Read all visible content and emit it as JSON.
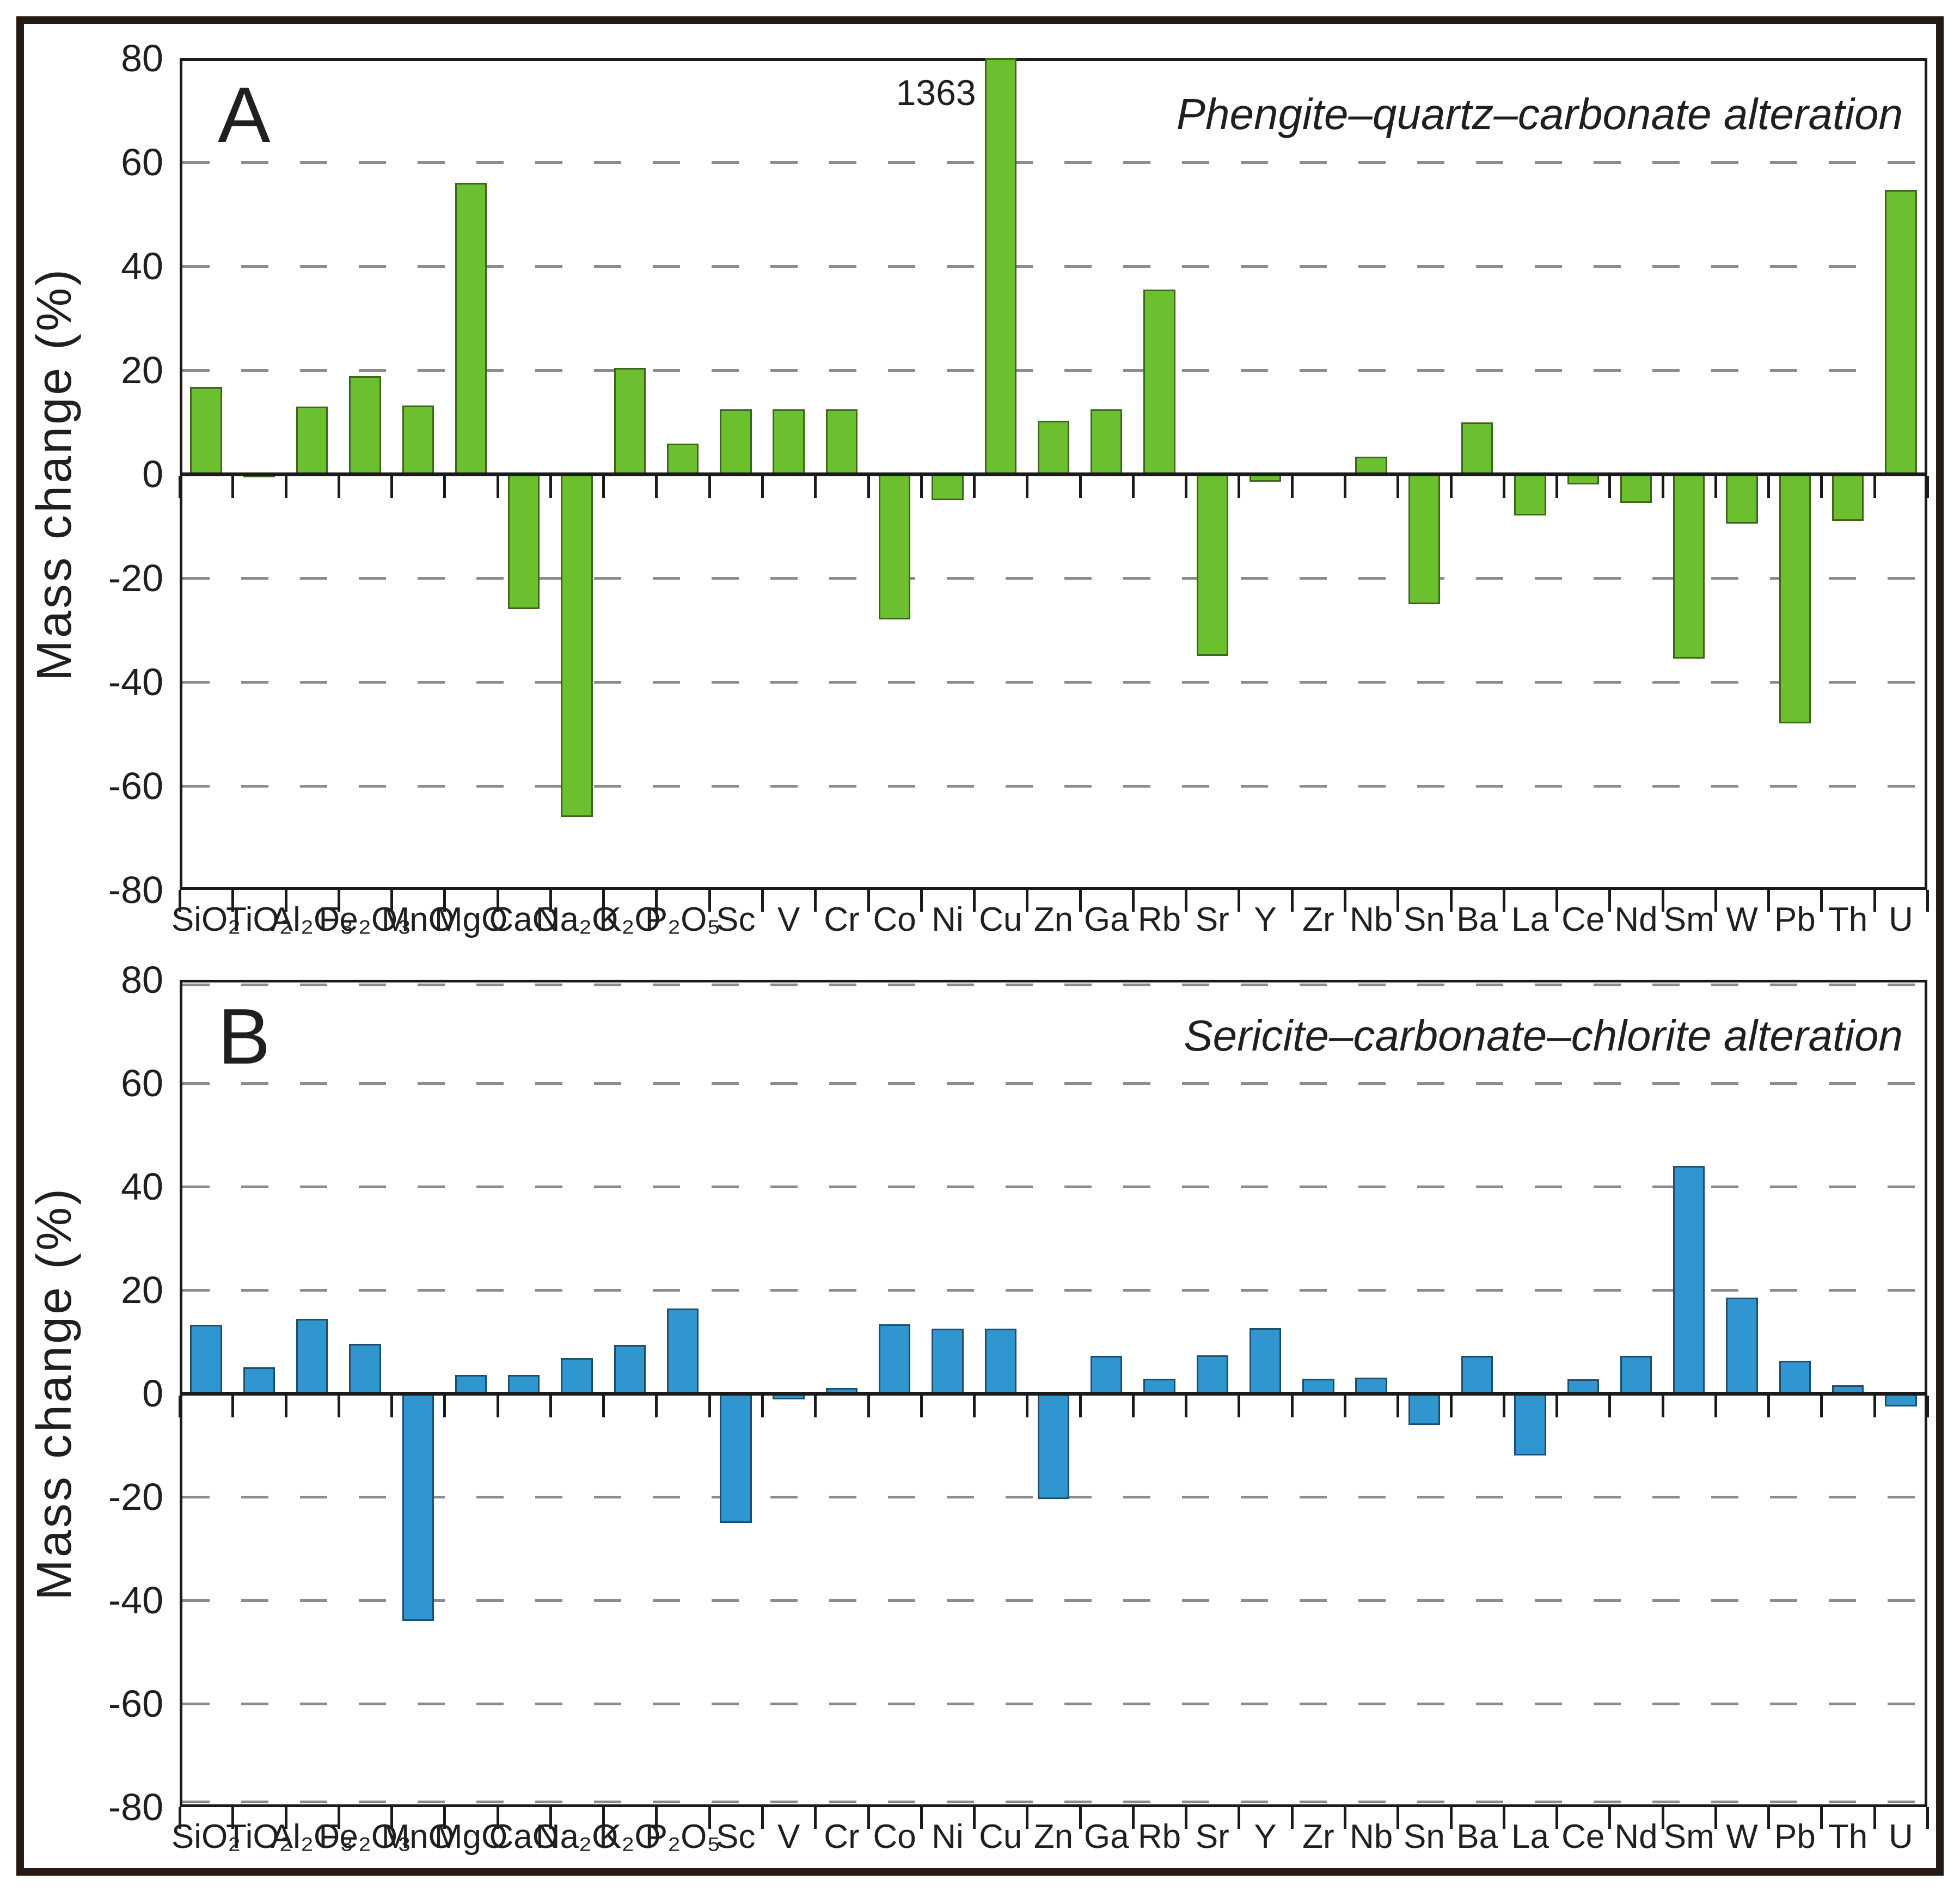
{
  "panels": [
    {
      "panel_label": "A",
      "title": "Phengite–quartz–carbonate alteration",
      "y_axis_label": "Mass change (%)"
    },
    {
      "panel_label": "B",
      "title": "Sericite–carbonate–chlorite alteration",
      "y_axis_label": "Mass change (%)"
    }
  ],
  "colors": {
    "panel_a_bar_fill": "#6cc02f",
    "panel_a_bar_border": "#3d661a",
    "panel_b_bar_fill": "#2f96d0",
    "panel_b_bar_border": "#1e4e6d",
    "axis": "#1a1a1a",
    "gridline": "#8c8c8c",
    "outer_frame": "#251a13"
  },
  "chart_data": [
    {
      "type": "bar",
      "panel_label": "A",
      "title": "Phengite–quartz–carbonate alteration",
      "ylabel": "Mass change (%)",
      "ylim": [
        -80,
        80
      ],
      "ytick_step": 20,
      "grid": "dashed-horizontal",
      "legend": "none",
      "categories": [
        "SiO₂",
        "TiO₂",
        "Al₂O₃",
        "Fe₂O₃",
        "MnO",
        "MgO",
        "CaO",
        "Na₂O",
        "K₂O",
        "P₂O₅",
        "Sc",
        "V",
        "Cr",
        "Co",
        "Ni",
        "Cu",
        "Zn",
        "Ga",
        "Rb",
        "Sr",
        "Y",
        "Zr",
        "Nb",
        "Sn",
        "Ba",
        "La",
        "Ce",
        "Nd",
        "Sm",
        "W",
        "Pb",
        "Th",
        "U"
      ],
      "values": [
        16.8,
        -0.5,
        13,
        18.8,
        13.2,
        56,
        -26,
        -66,
        20.4,
        5.9,
        12.5,
        12.5,
        12.5,
        -28,
        -5,
        1363,
        10.3,
        12.5,
        35.5,
        -35,
        -1.5,
        0,
        3.3,
        -25,
        10,
        -8,
        -2,
        -5.5,
        -35.5,
        -9.5,
        -48,
        -9,
        54.7
      ],
      "annotations": [
        {
          "text": "1363",
          "category": "Cu",
          "note": "bar clipped at +80"
        }
      ]
    },
    {
      "type": "bar",
      "panel_label": "B",
      "title": "Sericite–carbonate–chlorite alteration",
      "ylabel": "Mass change (%)",
      "ylim": [
        -80,
        80
      ],
      "ytick_step": 20,
      "grid": "dashed-horizontal",
      "legend": "none",
      "categories": [
        "SiO₂",
        "TiO₂",
        "Al₂O₃",
        "Fe₂O₃",
        "MnO",
        "MgO",
        "CaO",
        "Na₂O",
        "K₂O",
        "P₂O₅",
        "Sc",
        "V",
        "Cr",
        "Co",
        "Ni",
        "Cu",
        "Zn",
        "Ga",
        "Rb",
        "Sr",
        "Y",
        "Zr",
        "Nb",
        "Sn",
        "Ba",
        "La",
        "Ce",
        "Nd",
        "Sm",
        "W",
        "Pb",
        "Th",
        "U"
      ],
      "values": [
        13.3,
        5.1,
        14.4,
        9.6,
        -44,
        3.6,
        3.6,
        6.8,
        9.4,
        16.4,
        -25,
        -1.2,
        1.1,
        13.4,
        12.5,
        12.5,
        -20.4,
        7.3,
        2.8,
        7.4,
        12.6,
        2.8,
        3.1,
        -6.1,
        7.3,
        -12,
        2.7,
        7.3,
        44,
        18.5,
        6.3,
        1.6,
        -2.5
      ],
      "annotations": []
    }
  ]
}
